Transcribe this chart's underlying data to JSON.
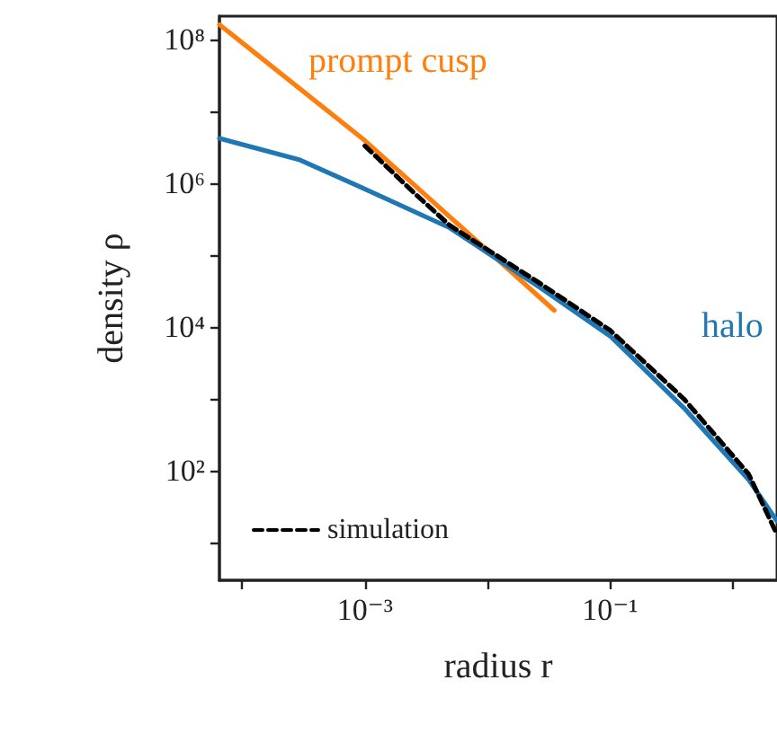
{
  "chart_data": {
    "type": "line",
    "xlabel": "radius r",
    "ylabel": "density ρ",
    "log": "xy",
    "xlim": [
      6.5e-05,
      2.3
    ],
    "ylim": [
      3,
      210000000.0
    ],
    "xticks": [
      {
        "value": 0.0001,
        "label": null
      },
      {
        "value": 0.001,
        "label": "10⁻³"
      },
      {
        "value": 0.01,
        "label": null
      },
      {
        "value": 0.1,
        "label": "10⁻¹"
      },
      {
        "value": 1,
        "label": null
      }
    ],
    "yticks": [
      {
        "value": 10,
        "label": null
      },
      {
        "value": 100,
        "label": "10²"
      },
      {
        "value": 1000,
        "label": null
      },
      {
        "value": 10000,
        "label": "10⁴"
      },
      {
        "value": 100000,
        "label": null
      },
      {
        "value": 1000000,
        "label": "10⁶"
      },
      {
        "value": 10000000,
        "label": null
      },
      {
        "value": 100000000,
        "label": "10⁸"
      }
    ],
    "grid": false,
    "legend": "bottom left",
    "marker": "none",
    "series": [
      {
        "color": "#ff7f0e",
        "line_style": "solid",
        "x": [
          6.5e-05,
          0.001,
          0.035
        ],
        "values": [
          160000000.0,
          3900000.0,
          17000.0
        ]
      },
      {
        "color": "#1f77b4",
        "line_style": "solid",
        "x": [
          6.5e-05,
          0.000295,
          0.0009,
          0.0049,
          0.027,
          0.1,
          0.4,
          1.35,
          2.3
        ],
        "values": [
          4200000.0,
          2100000.0,
          900000.0,
          240000.0,
          35000.0,
          7500.0,
          750,
          75,
          20
        ]
      },
      {
        "name": "simulation",
        "color": "#000000",
        "line_style": "dashed",
        "x": [
          0.001,
          0.0025,
          0.0049,
          0.027,
          0.1,
          0.4,
          1.35,
          2.3
        ],
        "values": [
          3300000.0,
          740000.0,
          260000.0,
          40000.0,
          9000.0,
          1000.0,
          90,
          13
        ]
      }
    ],
    "annotations": [
      "prompt cusp",
      "halo"
    ]
  }
}
